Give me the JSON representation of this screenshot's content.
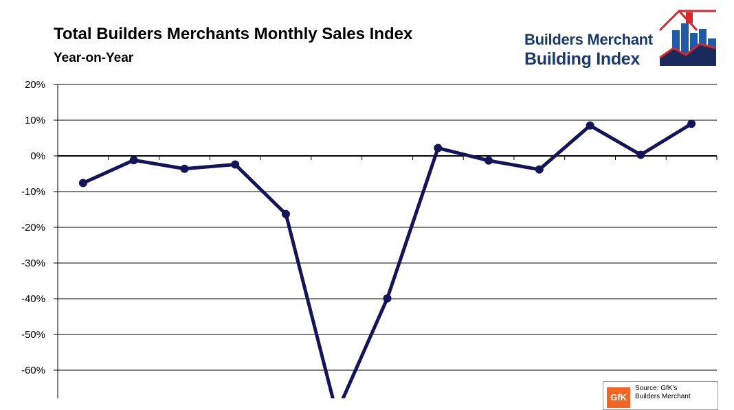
{
  "chart_data": {
    "type": "line",
    "title": "Total Builders Merchants Monthly Sales Index",
    "subtitle": "Year-on-Year",
    "ylim": [
      -70,
      20
    ],
    "yticks": [
      20,
      10,
      0,
      -10,
      -20,
      -30,
      -40,
      -50,
      -60
    ],
    "y_tick_labels": [
      "20%",
      "10%",
      "0%",
      "-10%",
      "-20%",
      "-30%",
      "-40%",
      "-50%",
      "-60%"
    ],
    "y_unit": "%",
    "grid": true,
    "series": [
      {
        "color": "#14145a",
        "values": [
          -7.6,
          -1.2,
          -3.6,
          -2.4,
          -16.3,
          -72.0,
          -39.9,
          2.2,
          -1.3,
          -3.8,
          8.5,
          0.3,
          9.0
        ]
      }
    ]
  },
  "logo": {
    "line1": "Builders Merchant",
    "line2": "Building Index"
  },
  "source": {
    "brand": "GfK",
    "line1": "Source: GfK's",
    "line2": "Builders Merchant"
  },
  "colors": {
    "line": "#14145a",
    "logo_blue": "#1a3a6e",
    "logo_red": "#d9262b",
    "gfk_orange": "#f26522"
  }
}
